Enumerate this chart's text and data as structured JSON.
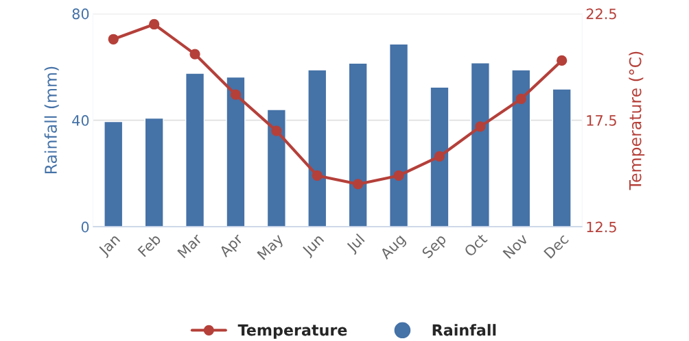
{
  "chart_data": {
    "type": "bar",
    "categories": [
      "Jan",
      "Feb",
      "Mar",
      "Apr",
      "May",
      "Jun",
      "Jul",
      "Aug",
      "Sep",
      "Oct",
      "Nov",
      "Dec"
    ],
    "series": [
      {
        "name": "Temperature",
        "type": "line",
        "axis": "y2",
        "color": "#b5403a",
        "marker": "circle",
        "values": [
          21.3,
          22.0,
          20.6,
          18.7,
          17.0,
          14.9,
          14.5,
          14.9,
          15.8,
          17.2,
          18.5,
          20.3
        ]
      },
      {
        "name": "Rainfall",
        "color": "#4572a7",
        "values": [
          39.5,
          40.8,
          57.6,
          56.2,
          44,
          58.9,
          61.4,
          68.6,
          52.4,
          61.5,
          58.9,
          51.7
        ]
      }
    ],
    "ylabel": "Rainfall (mm)",
    "y2label": "Temperature (°C)",
    "ylim": [
      0,
      80
    ],
    "yticks": [
      0,
      40,
      80
    ],
    "y2lim": [
      12.5,
      22.5
    ],
    "y2ticks": [
      12.5,
      17.5,
      22.5
    ],
    "grid": "y",
    "legend": "bottom"
  }
}
